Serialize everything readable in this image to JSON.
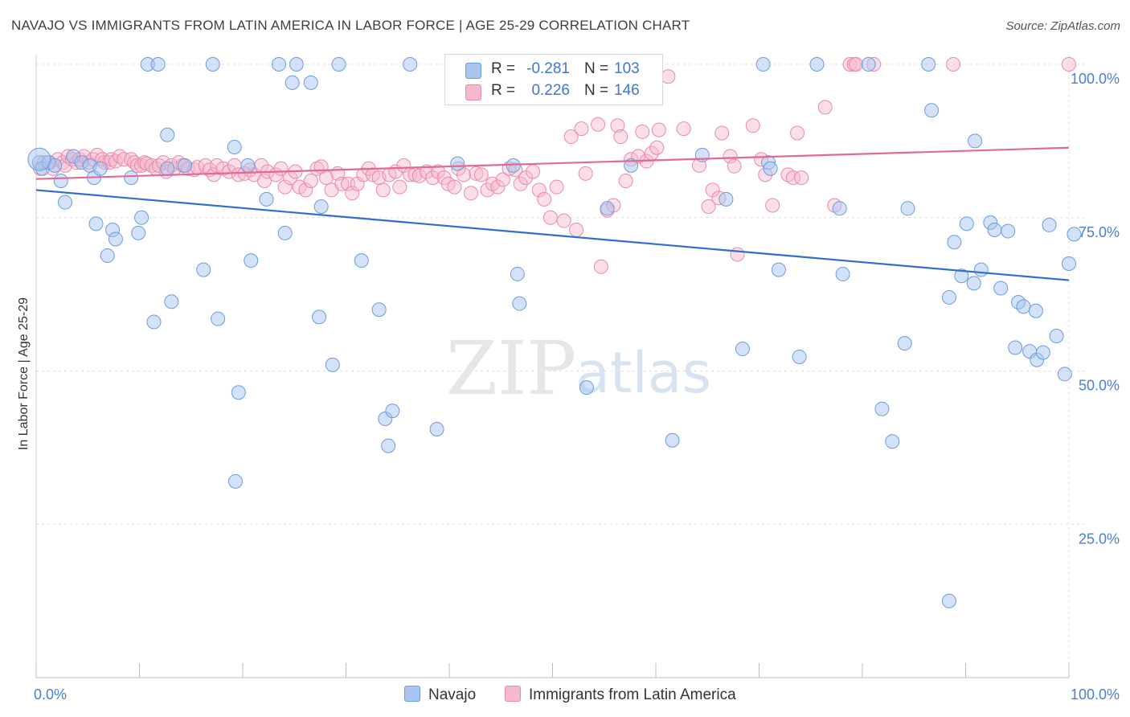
{
  "title": "NAVAJO VS IMMIGRANTS FROM LATIN AMERICA IN LABOR FORCE | AGE 25-29 CORRELATION CHART",
  "source": "Source: ZipAtlas.com",
  "watermark": "ZIPatlas",
  "colors": {
    "navajo_fill": "#a8c6ef",
    "navajo_stroke": "#6a9ddf",
    "navajo_line": "#2f6fcf",
    "latin_fill": "#f6b8cb",
    "latin_stroke": "#ea8aa8",
    "latin_line": "#e06a93",
    "tick_text": "#4a7fd4",
    "grid": "#dcdcdc"
  },
  "legend": {
    "rows": [
      {
        "r_label": "R =",
        "r_value": "-0.281",
        "n_label": "N =",
        "n_value": "103"
      },
      {
        "r_label": "R =",
        "r_value": "0.226",
        "n_label": "N =",
        "n_value": "146"
      }
    ],
    "placement": "top-center"
  },
  "chart_data": {
    "type": "scatter",
    "title": "NAVAJO VS IMMIGRANTS FROM LATIN AMERICA IN LABOR FORCE | AGE 25-29 CORRELATION CHART",
    "xlabel": "",
    "ylabel": "In Labor Force | Age 25-29",
    "xlim": [
      0,
      100
    ],
    "ylim": [
      0,
      102
    ],
    "x_tick_labels": [
      "0.0%",
      "100.0%"
    ],
    "y_tick_labels": [
      "25.0%",
      "50.0%",
      "75.0%",
      "100.0%"
    ],
    "y_tick_values": [
      25,
      50,
      75,
      100
    ],
    "grid": true,
    "series": [
      {
        "name": "Navajo",
        "trend": {
          "x": [
            0,
            100
          ],
          "y": [
            79.5,
            64.8
          ]
        },
        "points": [
          [
            0.3,
            84
          ],
          [
            0.6,
            83
          ],
          [
            1.2,
            84
          ],
          [
            1.8,
            83.5
          ],
          [
            2.4,
            81
          ],
          [
            2.8,
            77.5
          ],
          [
            3.6,
            85
          ],
          [
            4.4,
            84
          ],
          [
            5.2,
            83.5
          ],
          [
            5.6,
            81.5
          ],
          [
            6.2,
            83
          ],
          [
            5.8,
            74
          ],
          [
            7.4,
            73
          ],
          [
            7.7,
            71.5
          ],
          [
            6.9,
            68.8
          ],
          [
            9.2,
            81.5
          ],
          [
            10.2,
            75
          ],
          [
            9.9,
            72.5
          ],
          [
            10.8,
            100
          ],
          [
            11.8,
            100
          ],
          [
            12.7,
            88.5
          ],
          [
            12.7,
            83
          ],
          [
            11.4,
            58
          ],
          [
            13.1,
            61.3
          ],
          [
            14.4,
            83.5
          ],
          [
            16.2,
            66.5
          ],
          [
            17.1,
            100
          ],
          [
            17.6,
            58.5
          ],
          [
            19.2,
            86.5
          ],
          [
            19.3,
            32
          ],
          [
            19.6,
            46.5
          ],
          [
            20.5,
            83.5
          ],
          [
            20.8,
            68
          ],
          [
            22.3,
            78
          ],
          [
            23.5,
            100
          ],
          [
            24.1,
            72.5
          ],
          [
            24.8,
            97
          ],
          [
            25.2,
            100
          ],
          [
            26.6,
            97
          ],
          [
            27.4,
            58.8
          ],
          [
            27.6,
            76.8
          ],
          [
            28.7,
            51
          ],
          [
            29.3,
            100
          ],
          [
            31.5,
            68
          ],
          [
            33.2,
            60
          ],
          [
            33.8,
            42.2
          ],
          [
            34.1,
            37.8
          ],
          [
            34.5,
            43.5
          ],
          [
            36.2,
            100
          ],
          [
            38.8,
            40.5
          ],
          [
            40.8,
            83.8
          ],
          [
            46.2,
            83.5
          ],
          [
            46.6,
            65.8
          ],
          [
            46.8,
            61
          ],
          [
            53.3,
            47.3
          ],
          [
            55.3,
            76.5
          ],
          [
            57.6,
            83.5
          ],
          [
            57.9,
            100
          ],
          [
            61.6,
            38.7
          ],
          [
            64.5,
            85.2
          ],
          [
            66.8,
            78
          ],
          [
            68.4,
            53.6
          ],
          [
            70.4,
            100
          ],
          [
            70.9,
            84
          ],
          [
            71.1,
            83
          ],
          [
            71.9,
            66.5
          ],
          [
            73.9,
            52.3
          ],
          [
            75.6,
            100
          ],
          [
            77.8,
            76.5
          ],
          [
            78.1,
            65.8
          ],
          [
            80.6,
            100
          ],
          [
            81.9,
            43.8
          ],
          [
            82.9,
            38.5
          ],
          [
            84.1,
            54.5
          ],
          [
            84.4,
            76.5
          ],
          [
            86.4,
            100
          ],
          [
            86.7,
            92.5
          ],
          [
            88.4,
            62
          ],
          [
            88.4,
            12.5
          ],
          [
            88.9,
            71
          ],
          [
            89.6,
            65.5
          ],
          [
            90.1,
            74
          ],
          [
            90.8,
            64.3
          ],
          [
            90.9,
            87.5
          ],
          [
            91.5,
            66.5
          ],
          [
            92.4,
            74.2
          ],
          [
            92.8,
            73
          ],
          [
            93.4,
            63.5
          ],
          [
            94.1,
            72.8
          ],
          [
            94.8,
            53.8
          ],
          [
            95.1,
            61.2
          ],
          [
            95.6,
            60.5
          ],
          [
            96.2,
            53.2
          ],
          [
            96.8,
            59.8
          ],
          [
            96.9,
            51.8
          ],
          [
            97.5,
            53
          ],
          [
            98.1,
            73.8
          ],
          [
            98.8,
            55.7
          ],
          [
            99.6,
            49.5
          ],
          [
            100,
            67.5
          ],
          [
            100.5,
            72.3
          ]
        ]
      },
      {
        "name": "Immigrants from Latin America",
        "trend": {
          "x": [
            0,
            100
          ],
          "y": [
            81.3,
            86.4
          ]
        },
        "points": [
          [
            0.4,
            83
          ],
          [
            0.8,
            84
          ],
          [
            1.3,
            84
          ],
          [
            1.6,
            83
          ],
          [
            2.1,
            84.5
          ],
          [
            2.6,
            84
          ],
          [
            2.8,
            83.5
          ],
          [
            3.1,
            85
          ],
          [
            3.5,
            84.5
          ],
          [
            3.9,
            84
          ],
          [
            4.2,
            84.5
          ],
          [
            4.6,
            85
          ],
          [
            5.1,
            84
          ],
          [
            5.5,
            84.5
          ],
          [
            5.9,
            85.2
          ],
          [
            6.4,
            84.5
          ],
          [
            6.6,
            84
          ],
          [
            7.1,
            84
          ],
          [
            7.3,
            84.5
          ],
          [
            7.7,
            84.2
          ],
          [
            8.1,
            85
          ],
          [
            8.5,
            84.5
          ],
          [
            9.2,
            84.5
          ],
          [
            9.5,
            84
          ],
          [
            9.8,
            83.5
          ],
          [
            10.2,
            83.5
          ],
          [
            10.5,
            84
          ],
          [
            10.7,
            83.8
          ],
          [
            11.2,
            83.5
          ],
          [
            11.6,
            83
          ],
          [
            11.9,
            83.5
          ],
          [
            12.3,
            84
          ],
          [
            12.6,
            82.5
          ],
          [
            13.1,
            83.5
          ],
          [
            13.4,
            83
          ],
          [
            13.8,
            84
          ],
          [
            14.2,
            83.5
          ],
          [
            14.7,
            83
          ],
          [
            15.3,
            82.8
          ],
          [
            15.6,
            83.2
          ],
          [
            16.4,
            83.5
          ],
          [
            16.8,
            82.8
          ],
          [
            17.2,
            82
          ],
          [
            17.5,
            83.5
          ],
          [
            18.1,
            83
          ],
          [
            18.7,
            82.5
          ],
          [
            19.2,
            83.5
          ],
          [
            19.6,
            82
          ],
          [
            20.2,
            82.2
          ],
          [
            20.7,
            82.8
          ],
          [
            21.1,
            82
          ],
          [
            21.8,
            83.5
          ],
          [
            22.1,
            81
          ],
          [
            22.4,
            82.5
          ],
          [
            23.2,
            82
          ],
          [
            23.7,
            83
          ],
          [
            24.1,
            80
          ],
          [
            24.6,
            81.5
          ],
          [
            25.1,
            82.5
          ],
          [
            25.5,
            80
          ],
          [
            26.1,
            79.5
          ],
          [
            26.6,
            81
          ],
          [
            27.2,
            83
          ],
          [
            27.6,
            83.3
          ],
          [
            28.1,
            81.5
          ],
          [
            28.6,
            79.5
          ],
          [
            29.2,
            82.2
          ],
          [
            29.6,
            80.5
          ],
          [
            30.2,
            80.5
          ],
          [
            30.6,
            79
          ],
          [
            31.1,
            80.5
          ],
          [
            31.7,
            82
          ],
          [
            32.2,
            83
          ],
          [
            32.6,
            82
          ],
          [
            33.2,
            81.5
          ],
          [
            33.6,
            79.5
          ],
          [
            34.2,
            82
          ],
          [
            34.8,
            82.5
          ],
          [
            35.2,
            80
          ],
          [
            35.6,
            83.5
          ],
          [
            36.2,
            82
          ],
          [
            36.7,
            82
          ],
          [
            37.1,
            81.8
          ],
          [
            37.8,
            82.5
          ],
          [
            38.4,
            81.5
          ],
          [
            38.9,
            82.5
          ],
          [
            39.5,
            81.5
          ],
          [
            39.9,
            80.5
          ],
          [
            40.5,
            80
          ],
          [
            40.9,
            83
          ],
          [
            41.4,
            82
          ],
          [
            42.1,
            79
          ],
          [
            42.6,
            82.2
          ],
          [
            43.1,
            82
          ],
          [
            43.7,
            79.5
          ],
          [
            44.2,
            80.5
          ],
          [
            44.7,
            80
          ],
          [
            45.2,
            81.2
          ],
          [
            45.8,
            83
          ],
          [
            46.4,
            82.8
          ],
          [
            46.9,
            80.5
          ],
          [
            47.4,
            81.5
          ],
          [
            48.1,
            82.5
          ],
          [
            48.7,
            79.5
          ],
          [
            49.2,
            78
          ],
          [
            49.8,
            75
          ],
          [
            50.4,
            80
          ],
          [
            51.1,
            74.5
          ],
          [
            51.8,
            88.2
          ],
          [
            52.3,
            73
          ],
          [
            52.8,
            89.5
          ],
          [
            53.2,
            82.2
          ],
          [
            54.4,
            90.2
          ],
          [
            54.7,
            67
          ],
          [
            55.3,
            76.2
          ],
          [
            55.9,
            77
          ],
          [
            56.3,
            90
          ],
          [
            56.6,
            88.2
          ],
          [
            57.1,
            81
          ],
          [
            57.6,
            84.5
          ],
          [
            58.3,
            85
          ],
          [
            58.7,
            89
          ],
          [
            59.1,
            84.2
          ],
          [
            59.6,
            85.5
          ],
          [
            60.1,
            86.4
          ],
          [
            60.3,
            89.3
          ],
          [
            61.2,
            98
          ],
          [
            62.7,
            89.5
          ],
          [
            64.2,
            83.5
          ],
          [
            65.1,
            76.8
          ],
          [
            65.5,
            79.5
          ],
          [
            66.1,
            78.2
          ],
          [
            66.4,
            88.8
          ],
          [
            67.2,
            85
          ],
          [
            67.6,
            83.4
          ],
          [
            67.9,
            69
          ],
          [
            69.4,
            90
          ],
          [
            70.2,
            84.5
          ],
          [
            70.6,
            82
          ],
          [
            71.3,
            77
          ],
          [
            72.8,
            82
          ],
          [
            73.3,
            81.5
          ],
          [
            73.7,
            88.8
          ],
          [
            74.1,
            81.5
          ],
          [
            76.4,
            93
          ],
          [
            77.3,
            77
          ],
          [
            78.8,
            100
          ],
          [
            79.2,
            100
          ],
          [
            79.4,
            100
          ],
          [
            88.8,
            100
          ],
          [
            100,
            100
          ],
          [
            81.1,
            100
          ]
        ]
      }
    ]
  },
  "bottom_legend": {
    "items": [
      {
        "label": "Navajo"
      },
      {
        "label": "Immigrants from Latin America"
      }
    ]
  }
}
